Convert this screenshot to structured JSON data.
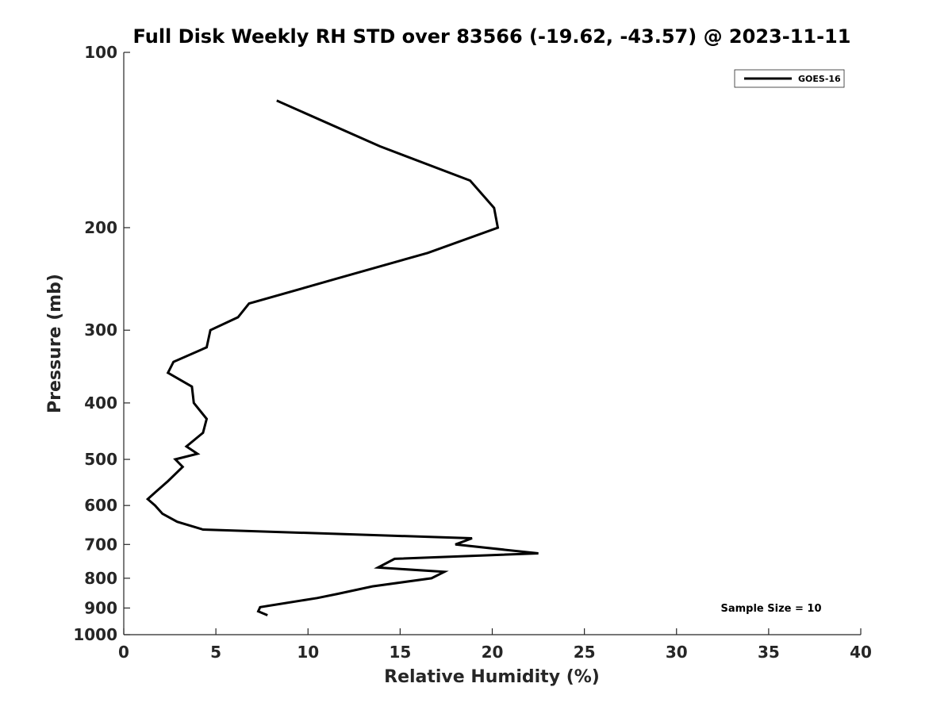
{
  "chart_data": {
    "type": "line",
    "title": "Full Disk Weekly RH STD over 83566 (-19.62, -43.57) @ 2023-11-11",
    "xlabel": "Relative Humidity (%)",
    "ylabel": "Pressure (mb)",
    "xlim": [
      0,
      40
    ],
    "ylim": [
      100,
      1000
    ],
    "y_scale": "log",
    "x_ticks": [
      0,
      5,
      10,
      15,
      20,
      25,
      30,
      35,
      40
    ],
    "y_ticks": [
      100,
      200,
      300,
      400,
      500,
      600,
      700,
      800,
      900,
      1000
    ],
    "legend_position": "top-right",
    "grid": false,
    "series": [
      {
        "name": "GOES-16",
        "color": "#000000",
        "points": [
          [
            8.3,
            121
          ],
          [
            13.9,
            145
          ],
          [
            18.8,
            166
          ],
          [
            20.1,
            185
          ],
          [
            20.3,
            200
          ],
          [
            16.5,
            221
          ],
          [
            11.5,
            245
          ],
          [
            6.8,
            270
          ],
          [
            6.2,
            285
          ],
          [
            4.7,
            300
          ],
          [
            4.5,
            321
          ],
          [
            2.7,
            340
          ],
          [
            2.4,
            355
          ],
          [
            3.7,
            375
          ],
          [
            3.8,
            400
          ],
          [
            4.5,
            426
          ],
          [
            4.3,
            450
          ],
          [
            3.4,
            475
          ],
          [
            4.0,
            489
          ],
          [
            2.8,
            500
          ],
          [
            3.2,
            515
          ],
          [
            2.4,
            545
          ],
          [
            1.7,
            570
          ],
          [
            1.3,
            585
          ],
          [
            1.7,
            600
          ],
          [
            2.1,
            620
          ],
          [
            2.9,
            640
          ],
          [
            4.3,
            660
          ],
          [
            18.9,
            683
          ],
          [
            18.0,
            700
          ],
          [
            22.5,
            725
          ],
          [
            14.7,
            741
          ],
          [
            13.8,
            767
          ],
          [
            17.4,
            780
          ],
          [
            16.7,
            800
          ],
          [
            13.5,
            826
          ],
          [
            11.6,
            851
          ],
          [
            10.5,
            865
          ],
          [
            7.4,
            897
          ],
          [
            7.3,
            912
          ],
          [
            7.8,
            926
          ]
        ]
      }
    ],
    "annotations": [
      "Sample Size = 10"
    ]
  }
}
